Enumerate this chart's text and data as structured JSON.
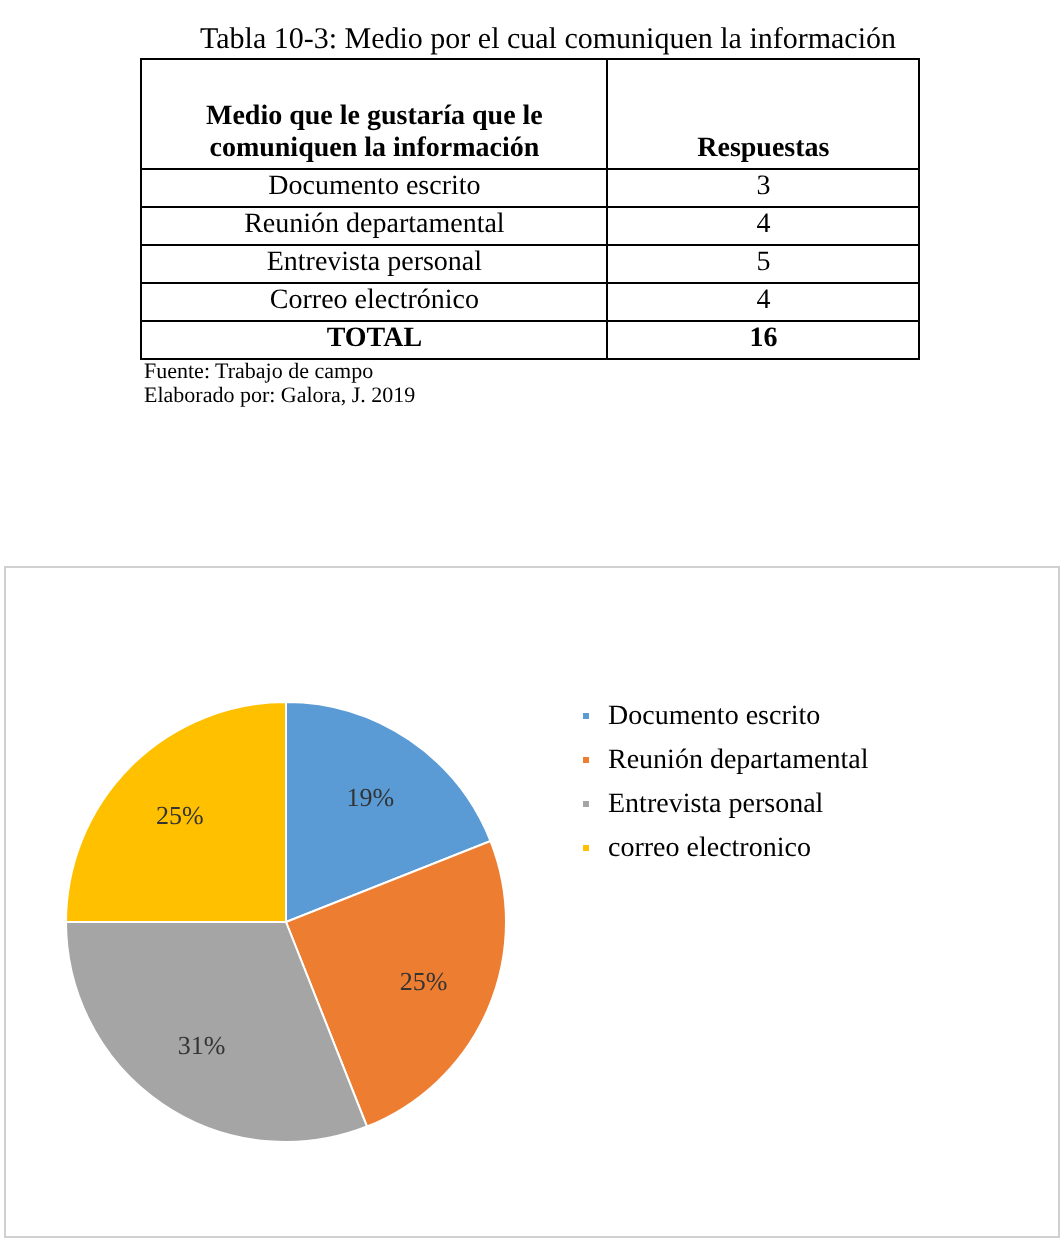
{
  "chart_data": {
    "type": "pie",
    "title": "Tabla 10-3: Medio por el cual comuniquen la información",
    "categories": [
      "Documento escrito",
      "Reunión departamental",
      "Entrevista personal",
      "correo electronico"
    ],
    "values": [
      19,
      25,
      31,
      25
    ],
    "value_labels": [
      "19%",
      "25%",
      "31%",
      "25%"
    ],
    "colors": [
      "#5b9bd5",
      "#ed7d31",
      "#a5a5a5",
      "#ffc000"
    ],
    "legend": "right",
    "annotations": [
      "Medio que le gustaría que le comuniquen la información",
      "Respuestas",
      "Documento escrito",
      "3",
      "Reunión departamental",
      "4",
      "Entrevista personal",
      "5",
      "Correo electrónico",
      "4",
      "TOTAL",
      "16",
      "Fuente: Trabajo de campo",
      "Elaborado por: Galora, J. 2019"
    ]
  }
}
